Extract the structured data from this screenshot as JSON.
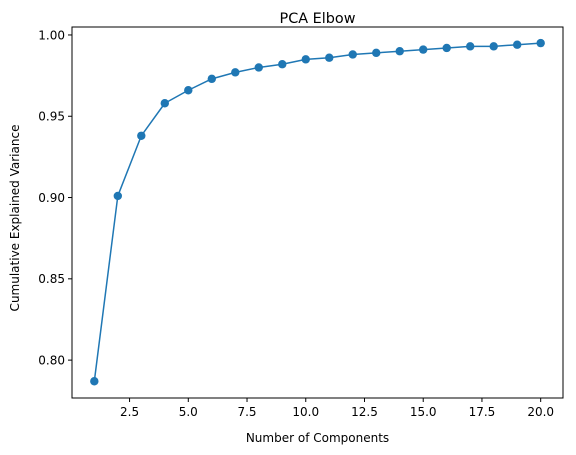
{
  "chart_data": {
    "type": "line",
    "title": "PCA Elbow",
    "xlabel": "Number of Components",
    "ylabel": "Cumulative Explained Variance",
    "xlim": [
      0.05,
      20.95
    ],
    "ylim": [
      0.7767,
      1.0049
    ],
    "xticks": [
      2.5,
      5.0,
      7.5,
      10.0,
      12.5,
      15.0,
      17.5,
      20.0
    ],
    "xtick_labels": [
      "2.5",
      "5.0",
      "7.5",
      "10.0",
      "12.5",
      "15.0",
      "17.5",
      "20.0"
    ],
    "yticks": [
      0.8,
      0.85,
      0.9,
      0.95,
      1.0
    ],
    "ytick_labels": [
      "0.80",
      "0.85",
      "0.90",
      "0.95",
      "1.00"
    ],
    "grid": false,
    "series": [
      {
        "name": "cumulative explained variance",
        "color": "#1f77b4",
        "marker": "circle",
        "x": [
          1,
          2,
          3,
          4,
          5,
          6,
          7,
          8,
          9,
          10,
          11,
          12,
          13,
          14,
          15,
          16,
          17,
          18,
          19,
          20
        ],
        "values": [
          0.787,
          0.901,
          0.938,
          0.958,
          0.966,
          0.973,
          0.977,
          0.98,
          0.982,
          0.985,
          0.986,
          0.988,
          0.989,
          0.99,
          0.991,
          0.992,
          0.993,
          0.993,
          0.994,
          0.995
        ]
      }
    ]
  }
}
